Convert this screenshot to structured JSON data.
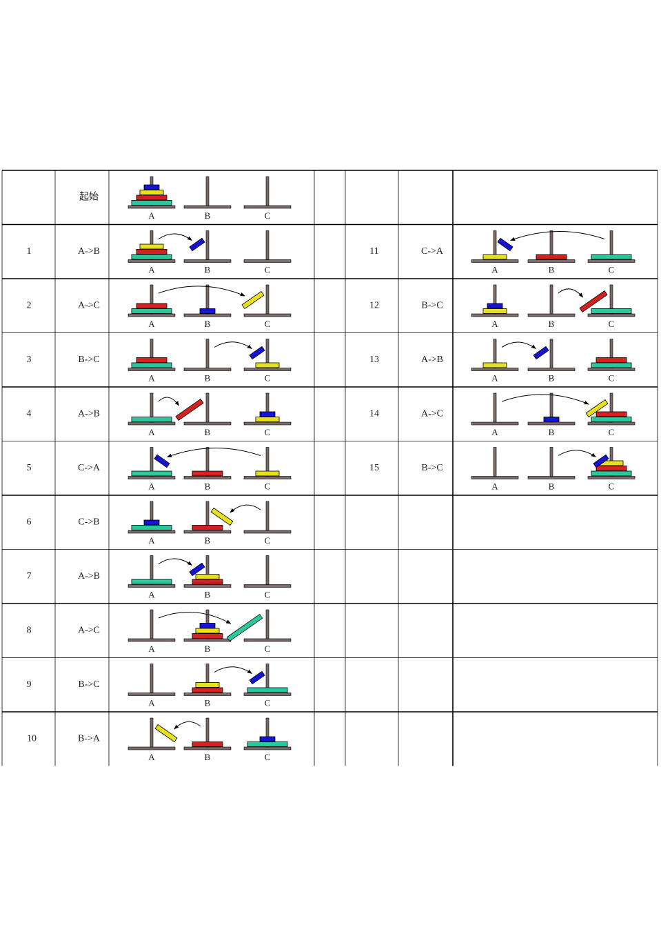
{
  "table": {
    "start": {
      "label": "起始"
    },
    "pegs": [
      "A",
      "B",
      "C"
    ],
    "steps": [
      {
        "number": "1",
        "move": "A->B"
      },
      {
        "number": "2",
        "move": "A->C"
      },
      {
        "number": "3",
        "move": "B->C"
      },
      {
        "number": "4",
        "move": "A->B"
      },
      {
        "number": "5",
        "move": "C->A"
      },
      {
        "number": "6",
        "move": "C->B"
      },
      {
        "number": "7",
        "move": "A->B"
      },
      {
        "number": "8",
        "move": "A->C"
      },
      {
        "number": "9",
        "move": "B->C"
      },
      {
        "number": "10",
        "move": "B->A"
      },
      {
        "number": "11",
        "move": "C->A"
      },
      {
        "number": "12",
        "move": "B->C"
      },
      {
        "number": "13",
        "move": "A->B"
      },
      {
        "number": "14",
        "move": "A->C"
      },
      {
        "number": "15",
        "move": "B->C"
      }
    ]
  }
}
